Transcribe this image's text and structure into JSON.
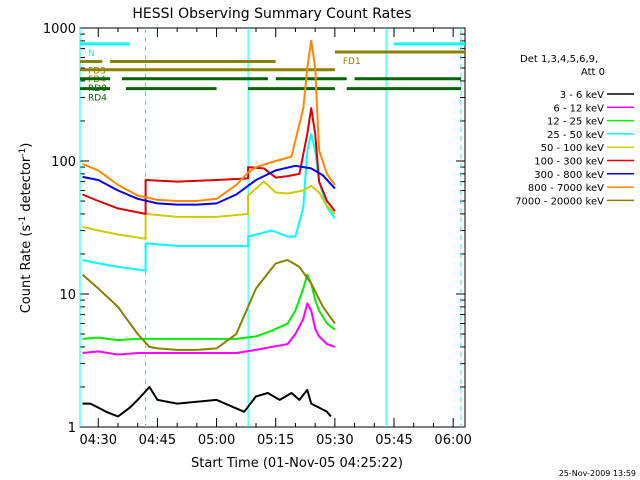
{
  "chart_data": {
    "type": "line",
    "title": "HESSI Observing Summary Count Rates",
    "xlabel": "Start Time (01-Nov-05 04:25:22)",
    "ylabel_main": "Count Rate (s",
    "ylabel_sup1": "-1",
    "ylabel_mid": " detector",
    "ylabel_sup2": "-1",
    "ylabel_end": ")",
    "ylabel_full": "Count Rate (s-1 detector-1)",
    "y_scale": "log",
    "xlim": [
      "04:25:22",
      "06:03:00"
    ],
    "ylim": [
      1,
      1000
    ],
    "x_ticks": [
      "04:30",
      "04:45",
      "05:00",
      "05:15",
      "05:30",
      "05:45",
      "06:00"
    ],
    "y_ticks": [
      "1",
      "10",
      "100",
      "1000"
    ],
    "legend_title": [
      "Det 1,3,4,5,6,9,",
      "Att 0"
    ],
    "legend_placement": "right",
    "timestamp": "25-Nov-2009 13:59",
    "series": [
      {
        "name": "3 - 6 keV",
        "color": "#000000",
        "x": [
          "04:26",
          "04:28",
          "04:30",
          "04:32",
          "04:35",
          "04:38",
          "04:40",
          "04:43",
          "04:45",
          "04:50",
          "05:00",
          "05:07",
          "05:10",
          "05:13",
          "05:16",
          "05:19",
          "05:21",
          "05:23",
          "05:24",
          "05:26",
          "05:28",
          "05:29"
        ],
        "y": [
          1.5,
          1.5,
          1.4,
          1.3,
          1.2,
          1.4,
          1.6,
          2.0,
          1.6,
          1.5,
          1.6,
          1.3,
          1.7,
          1.8,
          1.6,
          1.8,
          1.6,
          1.9,
          1.5,
          1.4,
          1.3,
          1.2
        ]
      },
      {
        "name": "6 - 12 keV",
        "color": "#ff00ff",
        "x": [
          "04:26",
          "04:30",
          "04:35",
          "04:40",
          "04:45",
          "04:50",
          "04:55",
          "05:00",
          "05:05",
          "05:10",
          "05:14",
          "05:18",
          "05:20",
          "05:22",
          "05:23",
          "05:24",
          "05:25",
          "05:26",
          "05:28",
          "05:30"
        ],
        "y": [
          3.6,
          3.7,
          3.5,
          3.6,
          3.6,
          3.6,
          3.6,
          3.6,
          3.6,
          3.8,
          4.0,
          4.2,
          5.0,
          6.5,
          8.5,
          7.5,
          5.5,
          4.8,
          4.2,
          4.0
        ]
      },
      {
        "name": "12 - 25 keV",
        "color": "#00ee00",
        "x": [
          "04:26",
          "04:30",
          "04:35",
          "04:40",
          "04:45",
          "04:50",
          "04:55",
          "05:00",
          "05:05",
          "05:10",
          "05:14",
          "05:18",
          "05:20",
          "05:22",
          "05:23",
          "05:24",
          "05:25",
          "05:26",
          "05:28",
          "05:30"
        ],
        "y": [
          4.6,
          4.7,
          4.5,
          4.6,
          4.6,
          4.6,
          4.6,
          4.6,
          4.6,
          4.8,
          5.3,
          6.0,
          7.5,
          11,
          14,
          12,
          9,
          7.5,
          6,
          5.4
        ]
      },
      {
        "name": "25 - 50 keV",
        "color": "#00ffff",
        "x": [
          "04:26",
          "04:30",
          "04:35",
          "04:42",
          "04:42",
          "04:50",
          "05:00",
          "05:08",
          "05:08",
          "05:14",
          "05:18",
          "05:20",
          "05:22",
          "05:23",
          "05:24",
          "05:25",
          "05:26",
          "05:28",
          "05:30"
        ],
        "y": [
          18,
          17,
          16,
          15,
          24,
          23,
          23,
          23,
          27,
          30,
          27,
          27,
          45,
          120,
          160,
          120,
          70,
          45,
          37
        ]
      },
      {
        "name": "50 - 100 keV",
        "color": "#cccc00",
        "x": [
          "04:26",
          "04:30",
          "04:35",
          "04:42",
          "04:42",
          "04:50",
          "05:00",
          "05:08",
          "05:08",
          "05:12",
          "05:15",
          "05:18",
          "05:22",
          "05:24",
          "05:26",
          "05:28",
          "05:30"
        ],
        "y": [
          32,
          30,
          28,
          26,
          40,
          38,
          38,
          40,
          55,
          70,
          58,
          57,
          60,
          65,
          58,
          46,
          40
        ]
      },
      {
        "name": "100 - 300 keV",
        "color": "#dd0000",
        "x": [
          "04:26",
          "04:30",
          "04:35",
          "04:42",
          "04:42",
          "04:50",
          "05:00",
          "05:08",
          "05:08",
          "05:12",
          "05:15",
          "05:18",
          "05:21",
          "05:23",
          "05:24",
          "05:25",
          "05:26",
          "05:28",
          "05:30"
        ],
        "y": [
          56,
          50,
          44,
          40,
          72,
          70,
          72,
          74,
          90,
          88,
          75,
          77,
          80,
          160,
          250,
          160,
          70,
          50,
          42
        ]
      },
      {
        "name": "300 - 800 keV",
        "color": "#0000ee",
        "x": [
          "04:26",
          "04:30",
          "04:35",
          "04:40",
          "04:45",
          "04:50",
          "04:55",
          "05:00",
          "05:05",
          "05:10",
          "05:15",
          "05:20",
          "05:24",
          "05:27",
          "05:30"
        ],
        "y": [
          76,
          72,
          60,
          52,
          48,
          47,
          47,
          48,
          56,
          72,
          85,
          92,
          88,
          78,
          62
        ]
      },
      {
        "name": "800 - 7000 keV",
        "color": "#ff8800",
        "x": [
          "04:26",
          "04:30",
          "04:35",
          "04:40",
          "04:45",
          "04:50",
          "04:55",
          "05:00",
          "05:05",
          "05:08",
          "05:10",
          "05:15",
          "05:19",
          "05:22",
          "05:23",
          "05:24",
          "05:25",
          "05:26",
          "05:28",
          "05:30"
        ],
        "y": [
          95,
          85,
          66,
          55,
          51,
          50,
          50,
          52,
          66,
          82,
          90,
          100,
          108,
          250,
          500,
          800,
          500,
          120,
          80,
          66
        ]
      },
      {
        "name": "7000 - 20000 keV",
        "color": "#8b8000",
        "x": [
          "04:26",
          "04:30",
          "04:35",
          "04:40",
          "04:43",
          "04:45",
          "04:50",
          "04:55",
          "05:00",
          "05:05",
          "05:10",
          "05:15",
          "05:18",
          "05:21",
          "05:24",
          "05:27",
          "05:30"
        ],
        "y": [
          14,
          11,
          8,
          5,
          4,
          3.9,
          3.8,
          3.8,
          3.9,
          5,
          11,
          17,
          18,
          16,
          12,
          8,
          6
        ]
      }
    ],
    "flags": [
      {
        "label": "N",
        "color": "#00ffff",
        "y": 760,
        "segments": [
          [
            "04:25:22",
            "04:38"
          ],
          [
            "05:45",
            "06:03"
          ]
        ]
      },
      {
        "label": "FD1",
        "color": "#8b8000",
        "y": 660,
        "segments": [
          [
            "05:30",
            "06:03"
          ]
        ]
      },
      {
        "label": "FD3",
        "color": "#8b8000",
        "y": 560,
        "segments": [
          [
            "04:25:22",
            "04:31"
          ],
          [
            "04:33",
            "05:15"
          ]
        ]
      },
      {
        "label": "FD4",
        "color": "#8b8000",
        "y": 485,
        "segments": [
          [
            "04:25:22",
            "05:30"
          ]
        ]
      },
      {
        "label": "RD0",
        "color": "#006400",
        "y": 415,
        "segments": [
          [
            "04:25:22",
            "04:33"
          ],
          [
            "04:36",
            "05:13"
          ],
          [
            "05:15",
            "05:33"
          ],
          [
            "05:35",
            "06:02"
          ]
        ]
      },
      {
        "label": "RD4",
        "color": "#006400",
        "y": 350,
        "segments": [
          [
            "04:25:22",
            "04:33"
          ],
          [
            "04:37",
            "05:00"
          ],
          [
            "05:08",
            "05:30"
          ],
          [
            "05:33",
            "06:02"
          ]
        ]
      }
    ],
    "vlines": [
      {
        "x": "04:25:22",
        "color": "#00ffff",
        "style": "solid"
      },
      {
        "x": "04:42",
        "color": "#00ffff",
        "style": "dashed"
      },
      {
        "x": "05:08",
        "color": "#00ffff",
        "style": "solid"
      },
      {
        "x": "05:43",
        "color": "#00ffff",
        "style": "solid"
      },
      {
        "x": "06:02",
        "color": "#00ffff",
        "style": "dashed"
      }
    ]
  }
}
